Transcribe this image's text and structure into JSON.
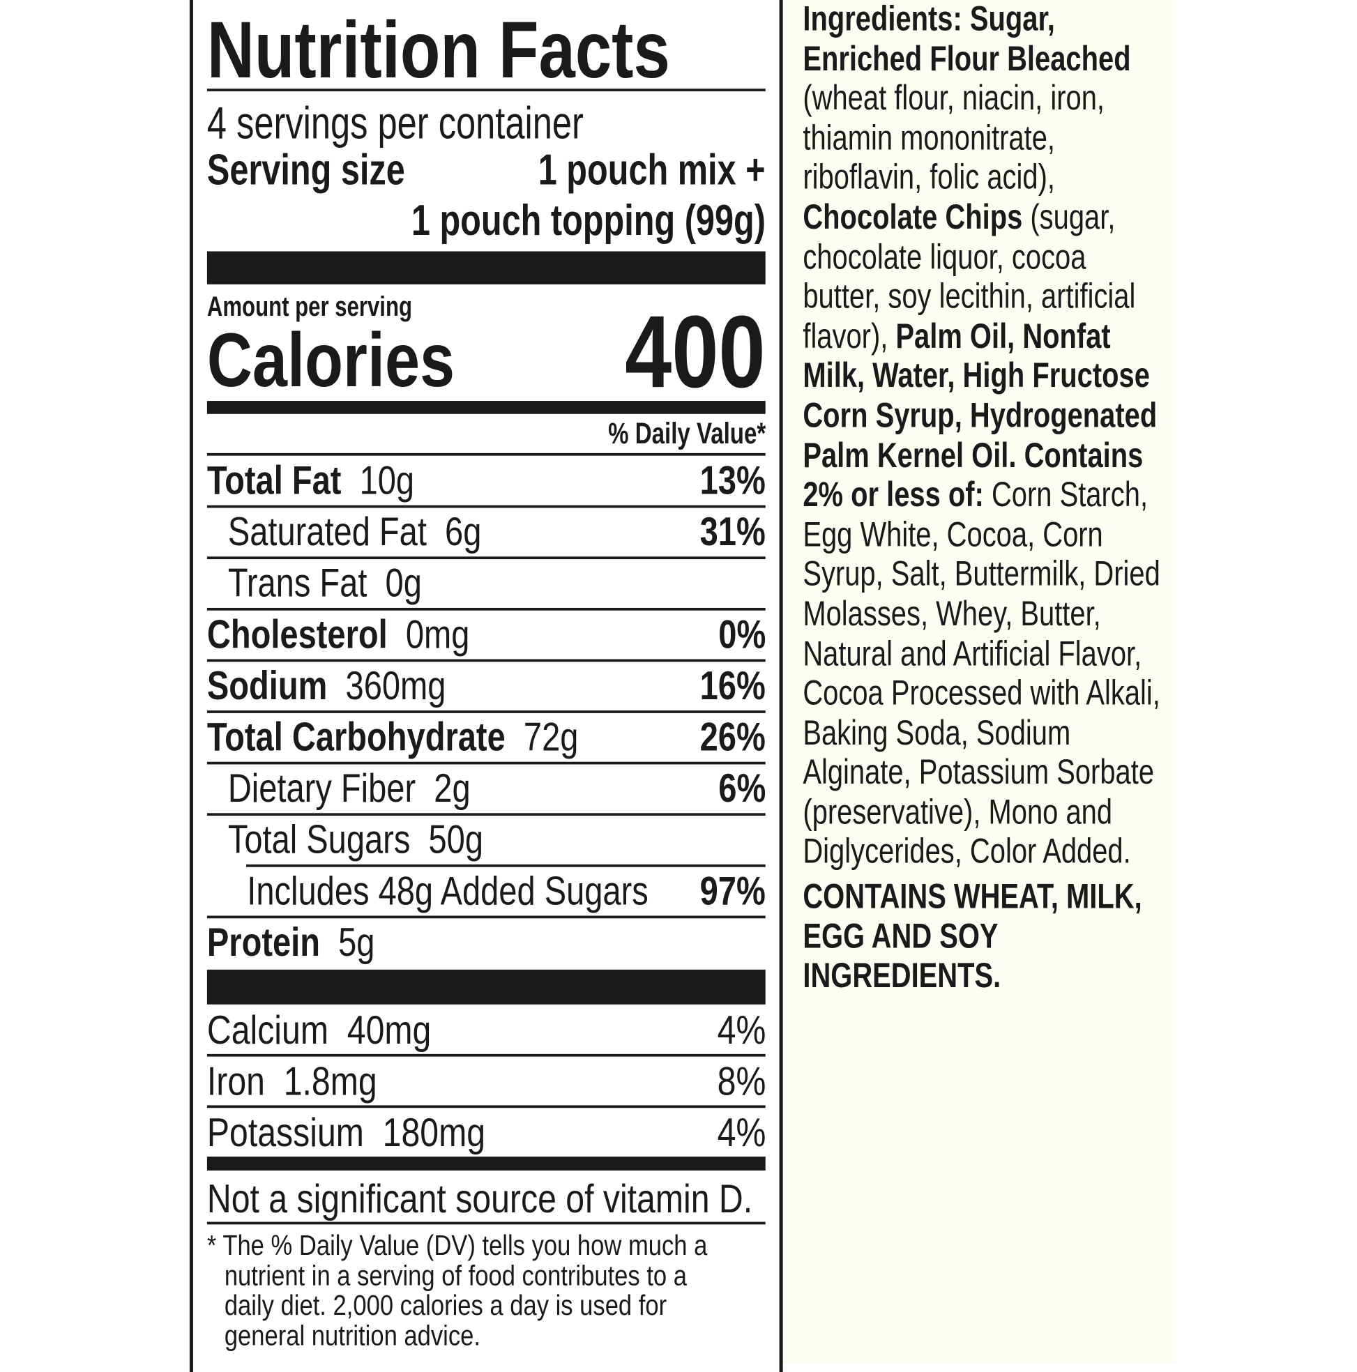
{
  "label": {
    "title": "Nutrition Facts",
    "servings_per_container": "4 servings per container",
    "serving_size_label": "Serving size",
    "serving_size_line1": "1 pouch mix +",
    "serving_size_line2": "1 pouch topping (99g)",
    "amount_per_serving": "Amount per serving",
    "calories_label": "Calories",
    "calories_value": "400",
    "daily_value_header": "% Daily Value*",
    "nutrients": [
      {
        "name": "Total Fat",
        "amount": "10g",
        "dv": "13%"
      },
      {
        "name": "Saturated Fat",
        "amount": "6g",
        "dv": "31%"
      },
      {
        "name": "Trans Fat",
        "amount": "0g",
        "dv": ""
      },
      {
        "name": "Cholesterol",
        "amount": "0mg",
        "dv": "0%"
      },
      {
        "name": "Sodium",
        "amount": "360mg",
        "dv": "16%"
      },
      {
        "name": "Total Carbohydrate",
        "amount": "72g",
        "dv": "26%"
      },
      {
        "name": "Dietary Fiber",
        "amount": "2g",
        "dv": "6%"
      },
      {
        "name": "Total Sugars",
        "amount": "50g",
        "dv": ""
      },
      {
        "name": "Includes 48g Added Sugars",
        "amount": "",
        "dv": "97%"
      },
      {
        "name": "Protein",
        "amount": "5g",
        "dv": ""
      }
    ],
    "minerals": [
      {
        "name": "Calcium",
        "amount": "40mg",
        "dv": "4%"
      },
      {
        "name": "Iron",
        "amount": "1.8mg",
        "dv": "8%"
      },
      {
        "name": "Potassium",
        "amount": "180mg",
        "dv": "4%"
      }
    ],
    "vitamin_d_note": "Not a significant source of vitamin D.",
    "footnote_lines": [
      "* The % Daily Value (DV) tells you how much a",
      "nutrient in a serving of food contributes to a",
      "daily diet. 2,000 calories a day is used for",
      "general nutrition advice."
    ]
  },
  "ingredients": {
    "lines": [
      [
        {
          "t": "Ingredients: Sugar,",
          "b": true
        }
      ],
      [
        {
          "t": "Enriched Flour Bleached",
          "b": true
        }
      ],
      [
        {
          "t": "(wheat flour, niacin, iron,",
          "b": false
        }
      ],
      [
        {
          "t": "thiamin mononitrate,",
          "b": false
        }
      ],
      [
        {
          "t": "riboflavin, folic acid),",
          "b": false
        }
      ],
      [
        {
          "t": "Chocolate Chips",
          "b": true
        },
        {
          "t": " (sugar,",
          "b": false
        }
      ],
      [
        {
          "t": "chocolate liquor, cocoa",
          "b": false
        }
      ],
      [
        {
          "t": "butter, soy lecithin, artificial",
          "b": false
        }
      ],
      [
        {
          "t": "flavor), ",
          "b": false
        },
        {
          "t": "Palm Oil, Nonfat",
          "b": true
        }
      ],
      [
        {
          "t": "Milk, Water, High Fructose",
          "b": true
        }
      ],
      [
        {
          "t": "Corn Syrup, Hydrogenated",
          "b": true
        }
      ],
      [
        {
          "t": "Palm Kernel Oil. Contains",
          "b": true
        }
      ],
      [
        {
          "t": "2% or less of:",
          "b": true
        },
        {
          "t": " Corn Starch,",
          "b": false
        }
      ],
      [
        {
          "t": "Egg White, Cocoa, Corn",
          "b": false
        }
      ],
      [
        {
          "t": "Syrup, Salt, Buttermilk, Dried",
          "b": false
        }
      ],
      [
        {
          "t": "Molasses, Whey, Butter,",
          "b": false
        }
      ],
      [
        {
          "t": "Natural and Artificial Flavor,",
          "b": false
        }
      ],
      [
        {
          "t": "Cocoa Processed with Alkali,",
          "b": false
        }
      ],
      [
        {
          "t": "Baking Soda, Sodium",
          "b": false
        }
      ],
      [
        {
          "t": "Alginate, Potassium Sorbate",
          "b": false
        }
      ],
      [
        {
          "t": "(preservative), Mono and",
          "b": false
        }
      ],
      [
        {
          "t": "Diglycerides, Color Added.",
          "b": false
        }
      ]
    ],
    "allergen_lines": [
      "CONTAINS WHEAT, MILK,",
      "EGG AND SOY",
      "INGREDIENTS."
    ]
  },
  "colors": {
    "ink": "#1a1a1a",
    "ingredients_background": "#fdfdf2"
  }
}
